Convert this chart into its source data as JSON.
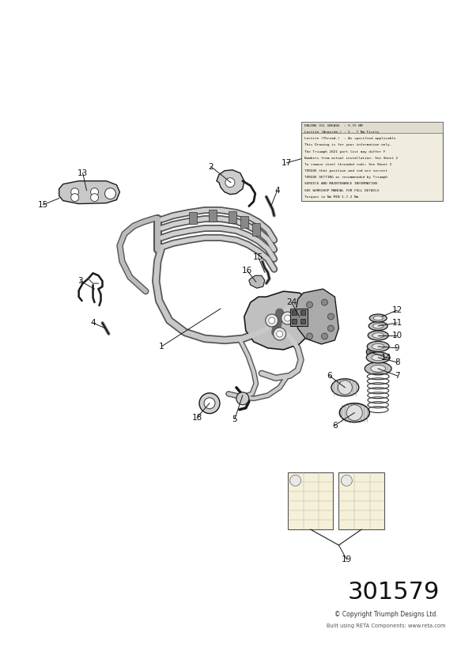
{
  "bg": "#ffffff",
  "part_number": "301579",
  "copyright": "© Copyright Triumph Designs Ltd.",
  "built": "Built using RETA Components: www.reta.com",
  "ec": "#1a1a1a",
  "fc_frame": "#d0d0d0",
  "fc_dark": "#888888",
  "note_lines": [
    "ENGINE OIL GREASE  : 9.75 NM",
    "Loctite (Anaerob.) : 5 - 7 Nm Fixity",
    "Loctite (Thread.)  : As specified applicable",
    "This Drawing is for your information only.",
    "The Triumph 2021 part list may differ F",
    "Numbers from actual installation. See Sheet 2",
    "To remove steel threaded rods: See Sheet 2",
    "TORQUE that position and rod are correct",
    "TORQUE SETTING as recommended by Triumph",
    "SERVICE AND MAINTENANCE INFORMATION",
    "SEE WORKSHOP MANUAL FOR FULL DETAILS",
    "Torques in Nm MIN 1.7-2 Nm"
  ]
}
